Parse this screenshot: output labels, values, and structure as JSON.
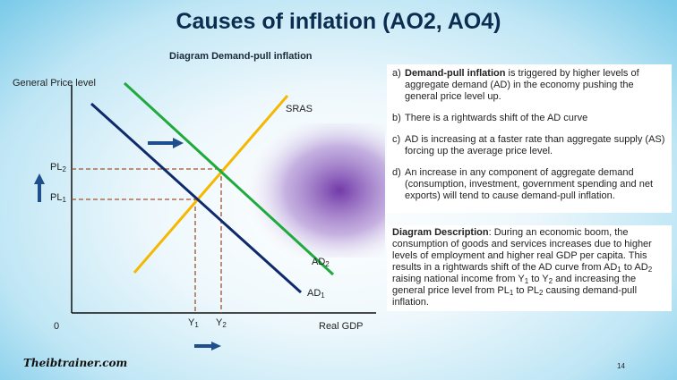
{
  "slide": {
    "title": "Causes of inflation (AO2, AO4)",
    "logo": "Theibtrainer.com",
    "page_number": "14"
  },
  "diagram": {
    "title": "Diagram Demand-pull inflation",
    "y_axis_label": "General Price level",
    "x_axis_label": "Real GDP",
    "origin_label": "0",
    "sras_label": "SRAS",
    "ad1_label": "AD",
    "ad1_sub": "1",
    "ad2_label": "AD",
    "ad2_sub": "2",
    "pl1_label": "PL",
    "pl1_sub": "1",
    "pl2_label": "PL",
    "pl2_sub": "2",
    "y1_label": "Y",
    "y1_sub": "1",
    "y2_label": "Y",
    "y2_sub": "2",
    "colors": {
      "sras": "#f5b800",
      "ad1": "#0f2a6b",
      "ad2": "#1eaa3c",
      "guides": "#a0522d",
      "arrows": "#1f4e8c",
      "glow": "#6a2fa4"
    }
  },
  "notes": {
    "a_marker": "a)",
    "a_bold": "Demand-pull inflation",
    "a_text": " is triggered by higher levels of aggregate demand (AD) in the economy pushing the general price level up.",
    "b_marker": "b)",
    "b_text": "There is a rightwards shift of the AD curve",
    "c_marker": "c)",
    "c_text": "AD is increasing at a faster rate than aggregate supply (AS) forcing up the average price level.",
    "d_marker": "d)",
    "d_text": "An increase in any component of aggregate demand (consumption, investment, government spending and net exports) will tend to cause demand-pull inflation."
  },
  "description": {
    "heading": "Diagram Description",
    "p1": ": During an economic boom, the consumption of goods and services increases due to higher levels of employment and higher real GDP per capita. This results in a rightwards shift of the AD curve from AD",
    "s1": "1",
    "p2": " to AD",
    "s2": "2",
    "p3": " raising national income from Y",
    "s3": "1",
    "p4": " to Y",
    "s4": "2",
    "p5": " and increasing the general price level from PL",
    "s5": "1",
    "p6": " to PL",
    "s6": "2",
    "p7": " causing demand-pull inflation."
  }
}
